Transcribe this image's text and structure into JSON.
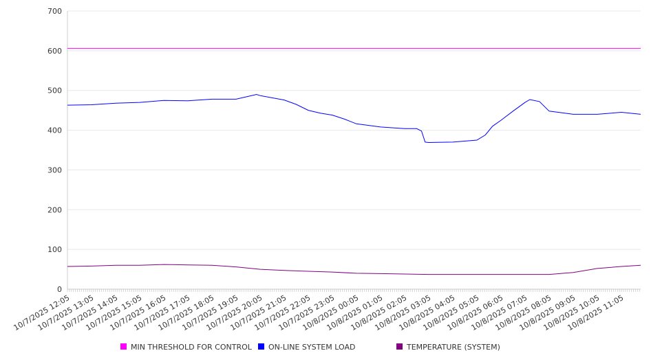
{
  "chart_data": {
    "type": "line",
    "title": "",
    "xlabel": "",
    "ylabel": "",
    "ylim": [
      0,
      700
    ],
    "yticks": [
      0,
      100,
      200,
      300,
      400,
      500,
      600,
      700
    ],
    "grid": true,
    "legend_placement": "bottom",
    "x_unit": "hours since 10/7/2025 12:05",
    "xlim": [
      0,
      23.8
    ],
    "xtick_labels": [
      "10/7/2025 12:05",
      "10/7/2025 13:05",
      "10/7/2025 14:05",
      "10/7/2025 15:05",
      "10/7/2025 16:05",
      "10/7/2025 17:05",
      "10/7/2025 18:05",
      "10/7/2025 19:05",
      "10/7/2025 20:05",
      "10/7/2025 21:05",
      "10/7/2025 22:05",
      "10/7/2025 23:05",
      "10/8/2025 00:05",
      "10/8/2025 01:05",
      "10/8/2025 02:05",
      "10/8/2025 03:05",
      "10/8/2025 04:05",
      "10/8/2025 05:05",
      "10/8/2025 06:05",
      "10/8/2025 07:05",
      "10/8/2025 08:05",
      "10/8/2025 09:05",
      "10/8/2025 10:05",
      "10/8/2025 11:05"
    ],
    "series": [
      {
        "name": "MIN THRESHOLD FOR CONTROL",
        "color": "#ff00ff",
        "x": [
          0,
          23.8
        ],
        "values": [
          606,
          606
        ]
      },
      {
        "name": "ON-LINE SYSTEM LOAD",
        "color": "#0000ff",
        "x": [
          0,
          1,
          2,
          3,
          4,
          5,
          6,
          7,
          7.5,
          7.85,
          8,
          9,
          9.5,
          10,
          10.5,
          11,
          11.5,
          12,
          13,
          14,
          14.5,
          14.7,
          14.85,
          15,
          16,
          17,
          17.35,
          17.65,
          18,
          18.5,
          19,
          19.2,
          19.6,
          20,
          21,
          22,
          23,
          23.8
        ],
        "values": [
          463,
          464,
          468,
          470,
          475,
          474,
          478,
          478,
          485,
          490,
          487,
          476,
          465,
          450,
          443,
          438,
          428,
          416,
          408,
          404,
          404,
          398,
          370,
          369,
          370,
          375,
          388,
          410,
          425,
          448,
          470,
          477,
          472,
          448,
          440,
          440,
          445,
          440
        ]
      },
      {
        "name": "TEMPERATURE (SYSTEM)",
        "color": "#800080",
        "x": [
          0,
          1,
          2,
          3,
          4,
          5,
          6,
          7,
          8,
          9,
          10,
          11,
          12,
          13,
          14,
          15,
          16,
          17,
          18,
          19,
          20,
          21,
          22,
          23,
          23.8
        ],
        "values": [
          57,
          58,
          60,
          60,
          62,
          61,
          60,
          56,
          50,
          47,
          45,
          43,
          40,
          39,
          38,
          37,
          37,
          37,
          37,
          37,
          37,
          42,
          52,
          57,
          60
        ]
      }
    ]
  }
}
